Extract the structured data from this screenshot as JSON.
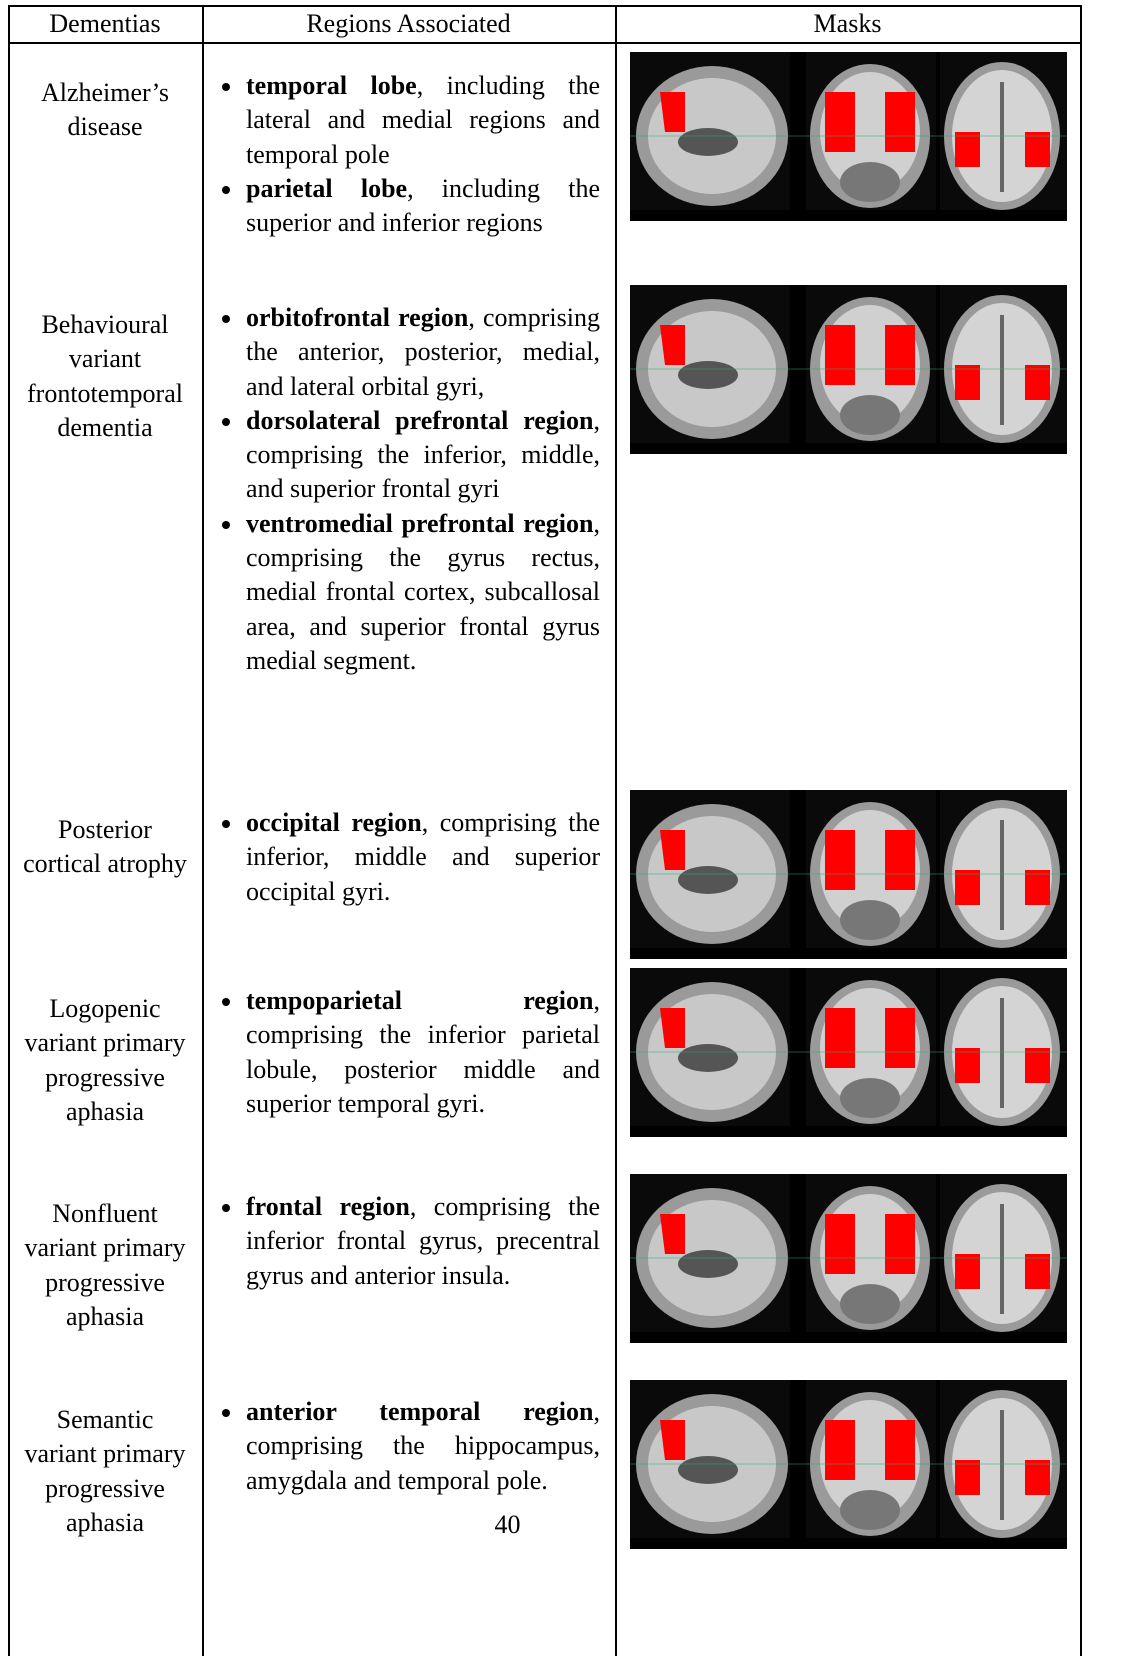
{
  "header": [
    "Dementias",
    "Regions Associated",
    "Masks"
  ],
  "rows": [
    {
      "dementia": "Alzheimer’s disease",
      "regions": [
        {
          "term": "temporal lobe",
          "description": ", including the lateral and medial regions and temporal pole"
        },
        {
          "term": "parietal lobe",
          "description": ", including the superior and inferior regions"
        }
      ]
    },
    {
      "dementia": "Behavioural variant frontotemporal dementia",
      "regions": [
        {
          "term": "orbitofrontal region",
          "description": ", comprising the anterior, posterior, medial, and lateral orbital gyri,"
        },
        {
          "term": "dorsolateral prefrontal region",
          "description": ", comprising the inferior, middle, and superior frontal gyri"
        },
        {
          "term": "ventromedial prefrontal region",
          "description": ", comprising the gyrus rectus, medial frontal cortex, subcallosal area, and superior frontal gyrus medial segment."
        }
      ]
    },
    {
      "dementia": "Posterior cortical atrophy",
      "regions": [
        {
          "term": "occipital region",
          "description": ", comprising the inferior, middle and superior occipital gyri."
        }
      ]
    },
    {
      "dementia": "Logopenic variant primary progressive aphasia",
      "regions": [
        {
          "term": "tempoparietal region",
          "description": ", comprising the inferior parietal lobule, posterior middle and superior temporal gyri."
        }
      ]
    },
    {
      "dementia": "Nonfluent variant primary progressive aphasia",
      "regions": [
        {
          "term": "frontal region",
          "description": ", comprising the inferior frontal gyrus, precentral gyrus and anterior insula."
        }
      ]
    },
    {
      "dementia": "Semantic variant primary progressive aphasia",
      "regions": [
        {
          "term": "anterior temporal region",
          "description": ", comprising the hippocampus, amygdala and temporal pole."
        }
      ]
    }
  ],
  "page_number": "40"
}
